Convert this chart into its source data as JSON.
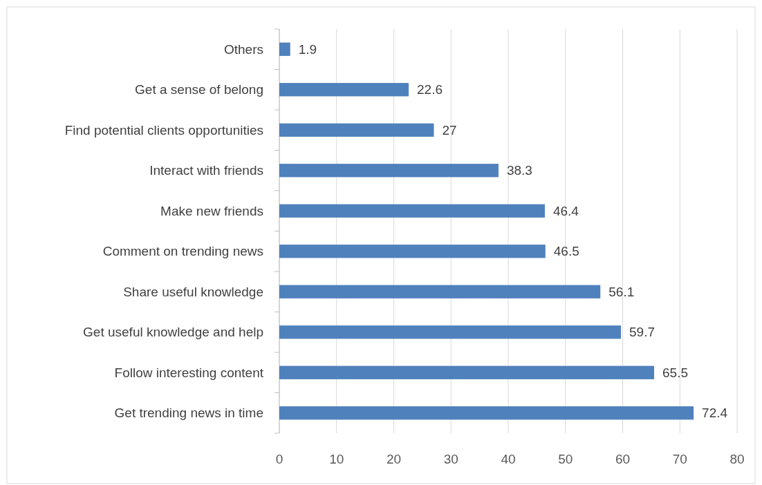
{
  "chart_data": {
    "type": "bar",
    "orientation": "horizontal",
    "categories": [
      "Others",
      "Get a sense of belong",
      "Find potential clients opportunities",
      "Interact with friends",
      "Make new friends",
      "Comment on trending news",
      "Share useful knowledge",
      "Get useful knowledge and help",
      "Follow interesting content",
      "Get trending news in time"
    ],
    "values": [
      1.9,
      22.6,
      27,
      38.3,
      46.4,
      46.5,
      56.1,
      59.7,
      65.5,
      72.4
    ],
    "color": "#4f81bd",
    "xlim": [
      0,
      80
    ],
    "xticks": [
      0,
      10,
      20,
      30,
      40,
      50,
      60,
      70,
      80
    ],
    "grid": "x",
    "data_labels": true
  }
}
